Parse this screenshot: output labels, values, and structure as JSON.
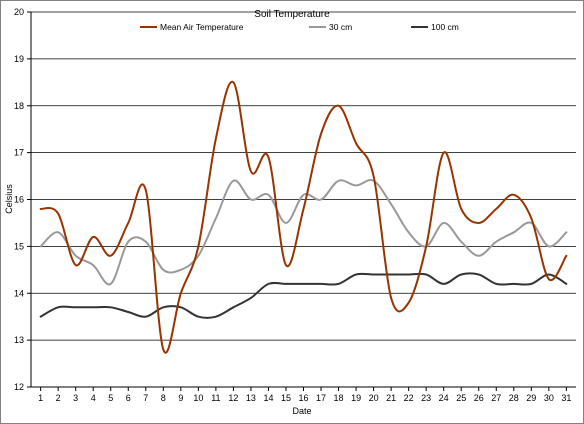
{
  "chart_data": {
    "type": "line",
    "title": "Soil Temperature",
    "xlabel": "Date",
    "ylabel": "Celsius",
    "ylim": [
      12,
      20
    ],
    "y_ticks": [
      "12",
      "13",
      "14",
      "15",
      "16",
      "17",
      "18",
      "19",
      "20"
    ],
    "x_ticks": [
      "1",
      "2",
      "3",
      "4",
      "5",
      "6",
      "7",
      "8",
      "9",
      "10",
      "11",
      "12",
      "13",
      "14",
      "15",
      "16",
      "17",
      "18",
      "19",
      "20",
      "21",
      "22",
      "23",
      "24",
      "25",
      "26",
      "27",
      "28",
      "29",
      "30",
      "31"
    ],
    "grid": "horizontal",
    "legend_position": "top",
    "x": [
      1,
      2,
      3,
      4,
      5,
      6,
      7,
      8,
      9,
      10,
      11,
      12,
      13,
      14,
      15,
      16,
      17,
      18,
      19,
      20,
      21,
      22,
      23,
      24,
      25,
      26,
      27,
      28,
      29,
      30,
      31
    ],
    "series": [
      {
        "name": "Mean Air Temperature",
        "color": "#993300",
        "values": [
          15.8,
          15.7,
          14.6,
          15.2,
          14.8,
          15.5,
          16.2,
          12.8,
          14.0,
          15.0,
          17.3,
          18.5,
          16.6,
          16.9,
          14.6,
          15.8,
          17.4,
          18.0,
          17.2,
          16.5,
          13.9,
          13.8,
          15.0,
          17.0,
          15.8,
          15.5,
          15.8,
          16.1,
          15.6,
          14.3,
          14.8
        ]
      },
      {
        "name": "30 cm",
        "color": "#999999",
        "values": [
          15.0,
          15.3,
          14.8,
          14.6,
          14.2,
          15.1,
          15.1,
          14.5,
          14.5,
          14.8,
          15.6,
          16.4,
          16.0,
          16.1,
          15.5,
          16.1,
          16.0,
          16.4,
          16.3,
          16.4,
          15.9,
          15.3,
          15.0,
          15.5,
          15.1,
          14.8,
          15.1,
          15.3,
          15.5,
          15.0,
          15.3
        ]
      },
      {
        "name": "100 cm",
        "color": "#333333",
        "values": [
          13.5,
          13.7,
          13.7,
          13.7,
          13.7,
          13.6,
          13.5,
          13.7,
          13.7,
          13.5,
          13.5,
          13.7,
          13.9,
          14.2,
          14.2,
          14.2,
          14.2,
          14.2,
          14.4,
          14.4,
          14.4,
          14.4,
          14.4,
          14.2,
          14.4,
          14.4,
          14.2,
          14.2,
          14.2,
          14.4,
          14.2
        ]
      }
    ]
  }
}
